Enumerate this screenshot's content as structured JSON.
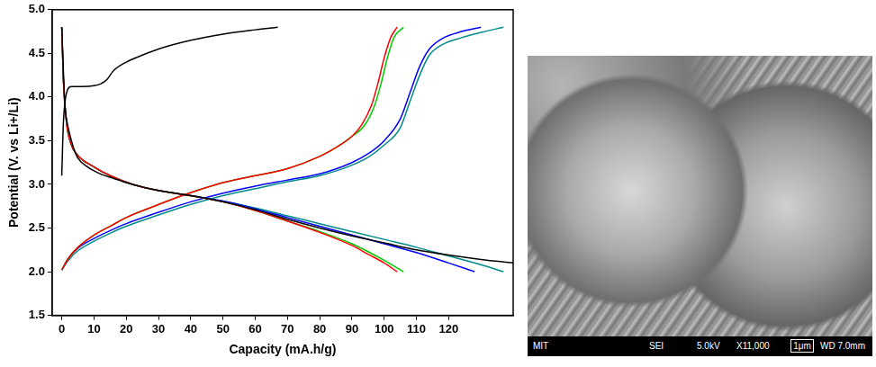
{
  "chart_data": {
    "type": "line",
    "xlabel": "Capacity (mA.h/g)",
    "ylabel": "Potential (V. vs Li+/Li)",
    "xlim": [
      -3,
      140
    ],
    "xticks": [
      0,
      10,
      20,
      30,
      40,
      50,
      60,
      70,
      80,
      90,
      100,
      110,
      120
    ],
    "ylim": [
      1.5,
      5.0
    ],
    "yticks": [
      1.5,
      {
        "value": 2,
        "label": "2.0"
      },
      2.5,
      {
        "value": 3,
        "label": "3.0"
      },
      3.5,
      {
        "value": 4,
        "label": "4.0"
      },
      4.5,
      {
        "value": 5,
        "label": "5.0"
      }
    ],
    "grid": false,
    "series": [
      {
        "color": "#000000",
        "x": [
          0,
          0.5,
          1.5,
          3,
          6,
          10,
          12,
          14,
          16,
          20,
          25,
          30,
          40,
          50,
          60,
          67
        ],
        "values": [
          3.1,
          3.7,
          4.05,
          4.12,
          4.12,
          4.13,
          4.15,
          4.2,
          4.3,
          4.4,
          4.48,
          4.55,
          4.65,
          4.72,
          4.77,
          4.8
        ]
      },
      {
        "color": "#000000",
        "x": [
          0,
          0.5,
          1,
          2,
          3,
          4,
          5,
          8,
          12,
          16,
          20,
          25,
          30,
          40,
          50,
          60,
          70,
          80,
          90,
          100,
          110,
          120,
          130,
          140
        ],
        "values": [
          4.8,
          4.3,
          3.9,
          3.65,
          3.5,
          3.38,
          3.3,
          3.2,
          3.12,
          3.07,
          3.02,
          2.97,
          2.93,
          2.87,
          2.8,
          2.71,
          2.6,
          2.5,
          2.41,
          2.33,
          2.25,
          2.19,
          2.14,
          2.1
        ]
      },
      {
        "color": "#ff0000",
        "x": [
          0,
          0.5,
          1.5,
          3,
          5,
          10,
          15,
          22,
          30,
          40,
          50,
          60,
          70,
          80,
          90,
          95,
          100,
          104
        ],
        "values": [
          4.8,
          4.2,
          3.7,
          3.45,
          3.33,
          3.2,
          3.1,
          3.0,
          2.93,
          2.87,
          2.8,
          2.7,
          2.58,
          2.45,
          2.3,
          2.2,
          2.1,
          2.0
        ]
      },
      {
        "color": "#00cc00",
        "x": [
          0,
          0.5,
          1.5,
          3,
          5,
          10,
          15,
          22,
          30,
          40,
          50,
          60,
          70,
          80,
          90,
          95,
          100,
          106
        ],
        "values": [
          4.8,
          4.2,
          3.7,
          3.45,
          3.33,
          3.2,
          3.1,
          3.0,
          2.93,
          2.87,
          2.8,
          2.7,
          2.58,
          2.46,
          2.32,
          2.23,
          2.13,
          2.0
        ]
      },
      {
        "color": "#0000ff",
        "x": [
          0,
          0.5,
          1.5,
          3,
          5,
          10,
          15,
          22,
          30,
          40,
          50,
          60,
          70,
          80,
          90,
          100,
          110,
          120,
          128
        ],
        "values": [
          4.8,
          4.2,
          3.7,
          3.45,
          3.33,
          3.2,
          3.1,
          3.0,
          2.93,
          2.87,
          2.81,
          2.72,
          2.62,
          2.52,
          2.42,
          2.32,
          2.22,
          2.1,
          2.0
        ]
      },
      {
        "color": "#008b8b",
        "x": [
          0,
          0.5,
          1.5,
          3,
          5,
          10,
          15,
          22,
          30,
          40,
          50,
          60,
          70,
          80,
          90,
          100,
          110,
          120,
          130,
          137
        ],
        "values": [
          4.8,
          4.2,
          3.7,
          3.45,
          3.33,
          3.2,
          3.1,
          3.0,
          2.93,
          2.87,
          2.81,
          2.73,
          2.64,
          2.55,
          2.46,
          2.37,
          2.28,
          2.18,
          2.08,
          2.0
        ]
      },
      {
        "color": "#ff0000",
        "x": [
          0,
          2,
          5,
          10,
          15,
          20,
          28,
          35,
          42,
          50,
          60,
          70,
          80,
          85,
          90,
          93,
          96,
          98,
          100,
          102,
          104
        ],
        "values": [
          2.02,
          2.15,
          2.28,
          2.42,
          2.52,
          2.62,
          2.74,
          2.84,
          2.93,
          3.02,
          3.1,
          3.18,
          3.32,
          3.42,
          3.55,
          3.68,
          3.9,
          4.15,
          4.45,
          4.68,
          4.8
        ]
      },
      {
        "color": "#00cc00",
        "x": [
          0,
          2,
          5,
          10,
          15,
          20,
          28,
          35,
          42,
          50,
          60,
          70,
          80,
          85,
          90,
          94,
          97,
          99,
          101,
          103,
          106
        ],
        "values": [
          2.02,
          2.15,
          2.28,
          2.42,
          2.52,
          2.62,
          2.74,
          2.84,
          2.93,
          3.02,
          3.1,
          3.18,
          3.32,
          3.42,
          3.55,
          3.68,
          3.9,
          4.15,
          4.45,
          4.68,
          4.8
        ]
      },
      {
        "color": "#0000ff",
        "x": [
          0,
          2,
          5,
          10,
          15,
          20,
          30,
          40,
          50,
          60,
          70,
          80,
          90,
          95,
          100,
          105,
          108,
          111,
          114,
          118,
          124,
          130
        ],
        "values": [
          2.02,
          2.15,
          2.27,
          2.38,
          2.47,
          2.55,
          2.68,
          2.8,
          2.9,
          2.98,
          3.05,
          3.12,
          3.25,
          3.35,
          3.5,
          3.75,
          4.05,
          4.35,
          4.55,
          4.67,
          4.75,
          4.8
        ]
      },
      {
        "color": "#008b8b",
        "x": [
          0,
          2,
          5,
          10,
          15,
          20,
          30,
          40,
          50,
          60,
          70,
          80,
          90,
          95,
          100,
          105,
          108,
          111,
          114,
          118,
          124,
          130,
          137
        ],
        "values": [
          2.02,
          2.13,
          2.24,
          2.35,
          2.44,
          2.52,
          2.65,
          2.77,
          2.87,
          2.95,
          3.03,
          3.1,
          3.22,
          3.31,
          3.45,
          3.65,
          3.95,
          4.25,
          4.48,
          4.6,
          4.68,
          4.74,
          4.8
        ]
      }
    ]
  },
  "micrograph": {
    "info_bar": [
      "MIT",
      "SEI",
      "5.0kV",
      "X11,000",
      "1μm",
      "WD 7.0mm"
    ]
  }
}
